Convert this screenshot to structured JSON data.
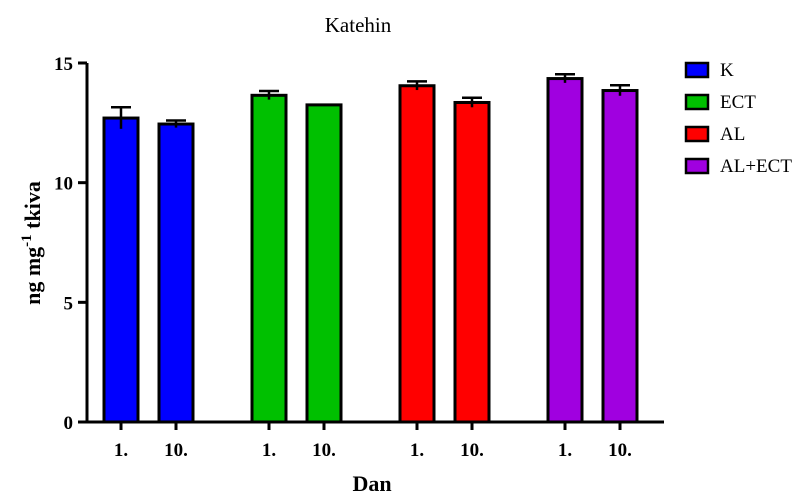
{
  "chart_data": {
    "type": "bar",
    "title": "Katehin",
    "xlabel": "Dan",
    "ylabel": {
      "base": "ng mg",
      "superscript": "-1",
      "suffix": " tkiva"
    },
    "ylim": [
      0,
      15
    ],
    "yticks": [
      "0",
      "5",
      "10",
      "15"
    ],
    "grid": false,
    "legend_position": "right",
    "groups": [
      {
        "name": "K",
        "color": "#0000ff",
        "bars": [
          {
            "label": "1.",
            "value": 12.7,
            "error": 0.45
          },
          {
            "label": "10.",
            "value": 12.45,
            "error": 0.15
          }
        ]
      },
      {
        "name": "ECT",
        "color": "#00c000",
        "bars": [
          {
            "label": "1.",
            "value": 13.65,
            "error": 0.18
          },
          {
            "label": "10.",
            "value": 13.25,
            "error": 0
          }
        ]
      },
      {
        "name": "AL",
        "color": "#ff0000",
        "bars": [
          {
            "label": "1.",
            "value": 14.05,
            "error": 0.18
          },
          {
            "label": "10.",
            "value": 13.35,
            "error": 0.2
          }
        ]
      },
      {
        "name": "AL+ECT",
        "color": "#a000e0",
        "bars": [
          {
            "label": "1.",
            "value": 14.35,
            "error": 0.18
          },
          {
            "label": "10.",
            "value": 13.85,
            "error": 0.22
          }
        ]
      }
    ]
  }
}
